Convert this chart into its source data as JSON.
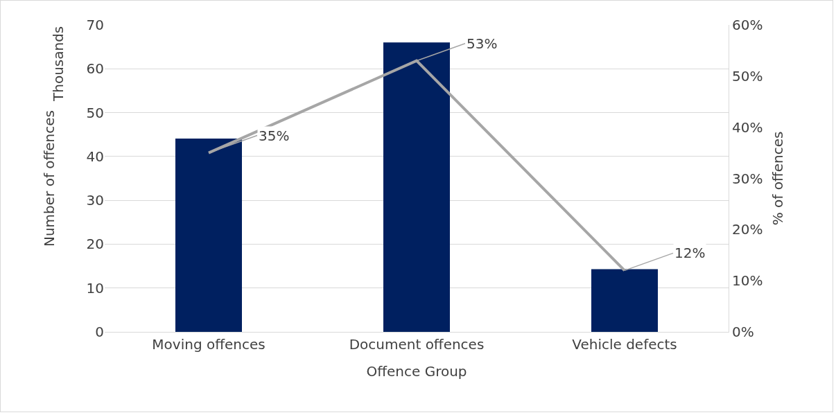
{
  "chart_data": {
    "type": "bar",
    "xlabel": "Offence Group",
    "ylabel": "Number of offences",
    "y2label": "% of offences",
    "annotations": [
      "Thousands"
    ],
    "categories": [
      "Moving offences",
      "Document offences",
      "Vehicle defects"
    ],
    "series": [
      {
        "color": "#002060",
        "values": [
          44.1,
          66,
          14.3
        ]
      },
      {
        "type": "line",
        "axis": "y2",
        "color": "#a6a6a6",
        "values": [
          35,
          53,
          12
        ],
        "value_labels": [
          "35%",
          "53%",
          "12%"
        ]
      }
    ],
    "ylim": [
      0,
      70
    ],
    "yticks": [
      0,
      10,
      20,
      30,
      40,
      50,
      60,
      70
    ],
    "y2lim": [
      0,
      60
    ],
    "y2ticks": [
      {
        "value": 0,
        "label": "0%"
      },
      {
        "value": 10,
        "label": "10%"
      },
      {
        "value": 20,
        "label": "20%"
      },
      {
        "value": 30,
        "label": "30%"
      },
      {
        "value": 40,
        "label": "40%"
      },
      {
        "value": 50,
        "label": "50%"
      },
      {
        "value": 60,
        "label": "60%"
      }
    ],
    "grid": "y",
    "marker": "none",
    "line_style": "solid"
  }
}
